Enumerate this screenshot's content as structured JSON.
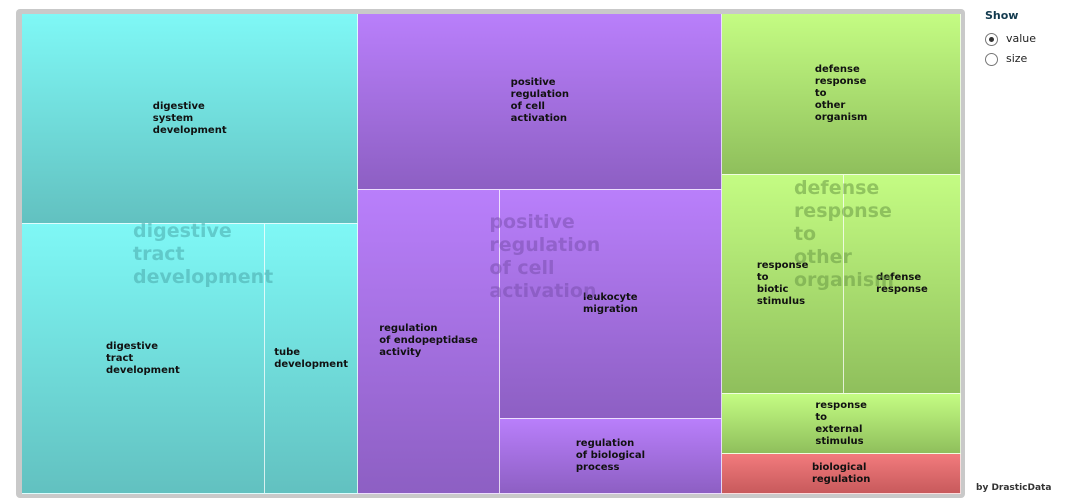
{
  "controls": {
    "title": "Show",
    "options": [
      {
        "label": "value",
        "selected": true
      },
      {
        "label": "size",
        "selected": false
      }
    ]
  },
  "credit": "by DrasticData",
  "chart_data": {
    "type": "treemap",
    "title": "",
    "groups": [
      {
        "name": "digestive\ntract\ndevelopment",
        "color": "#7ff8f6",
        "color_dark": "#62c1c0",
        "label_color": "#4aa9ab",
        "children": [
          {
            "name": "digestive\nsystem\ndevelopment",
            "value": 35.9
          },
          {
            "name": "digestive\ntract\ndevelopment",
            "value": 33.2
          },
          {
            "name": "tube\ndevelopment",
            "value": 12.8
          }
        ]
      },
      {
        "name": "positive\nregulation\nof cell\nactivation",
        "color": "#b97ffb",
        "color_dark": "#8d5fc3",
        "label_color": "#7b50b0",
        "children": [
          {
            "name": "positive\nregulation\nof cell\nactivation",
            "value": 32.4
          },
          {
            "name": "regulation\nof endopeptidase\nactivity",
            "value": 21.8
          },
          {
            "name": "leukocyte\nmigration",
            "value": 25.9
          },
          {
            "name": "regulation\nof biological\nprocess",
            "value": 8.5
          }
        ]
      },
      {
        "name": "defense\nresponse\nto\nother\norganism",
        "color": "#c4fc83",
        "color_dark": "#8fbf5c",
        "label_color": "#6a9a45",
        "children": [
          {
            "name": "defense\nresponse\nto\nother\norganism",
            "value": 19.5
          },
          {
            "name": "response\nto\nbiotic\nstimulus",
            "value": 13.5
          },
          {
            "name": "defense\nresponse",
            "value": 13.0
          },
          {
            "name": "response\nto\nexternal\nstimulus",
            "value": 7.3
          }
        ]
      },
      {
        "name": "",
        "color": "#f27b7d",
        "color_dark": "#c85a5c",
        "label_color": "#a04040",
        "children": [
          {
            "name": "biological\nregulation",
            "value": 4.8
          }
        ]
      }
    ]
  }
}
